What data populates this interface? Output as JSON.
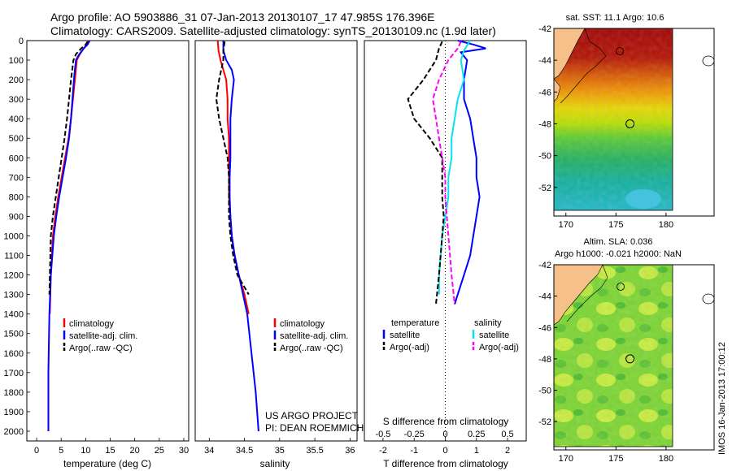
{
  "header": {
    "line1": "Argo profile: AO 5903886_31 07-Jan-2013 20130107_17 47.985S 176.396E",
    "line2": "Climatology: CARS2009. Satellite-adjusted climatology: synTS_20130109.nc (1.9d later)"
  },
  "colors": {
    "climatology": "#ff0000",
    "satellite": "#0000ff",
    "argo": "#000000",
    "sat_salinity": "#00e5ee",
    "argo_salinity": "#ff00ff",
    "land": "#f5c08a"
  },
  "footer": {
    "project": "US ARGO PROJECT",
    "pi": "PI: DEAN ROEMMICH",
    "imos_stamp": "IMOS 16-Jan-2013 17:00:12"
  },
  "chart_data": [
    {
      "type": "line",
      "id": "temperature_profile",
      "xlabel": "temperature (deg C)",
      "ylabel": "",
      "xlim": [
        -2,
        31
      ],
      "ylim": [
        2050,
        0
      ],
      "xticks": [
        0,
        5,
        10,
        15,
        20,
        25,
        30
      ],
      "yticks": [
        0,
        100,
        200,
        300,
        400,
        500,
        600,
        700,
        800,
        900,
        1000,
        1100,
        1200,
        1300,
        1400,
        1500,
        1600,
        1700,
        1800,
        1900,
        2000
      ],
      "legend": [
        "climatology",
        "satellite-adj. clim.",
        "Argo(..raw -QC)"
      ],
      "legend_position": "bottom-right",
      "series": [
        {
          "name": "climatology",
          "color": "#ff0000",
          "dash": "",
          "x": [
            10.6,
            10.2,
            9.6,
            8.8,
            8.2,
            7.8,
            7.4,
            7.0,
            6.5,
            5.8,
            5.1,
            4.4,
            3.8,
            3.3,
            2.9,
            2.7
          ],
          "y": [
            0,
            20,
            40,
            70,
            100,
            200,
            300,
            400,
            500,
            600,
            700,
            800,
            900,
            1000,
            1200,
            1400
          ]
        },
        {
          "name": "satellite-adj. clim.",
          "color": "#0000ff",
          "dash": "",
          "x": [
            10.8,
            10.4,
            9.6,
            8.7,
            8.0,
            7.6,
            7.3,
            7.0,
            6.6,
            6.0,
            5.3,
            4.6,
            4.0,
            3.5,
            2.9,
            2.6,
            2.4,
            2.4
          ],
          "y": [
            0,
            20,
            40,
            70,
            100,
            200,
            300,
            400,
            500,
            600,
            700,
            800,
            900,
            1000,
            1200,
            1400,
            1700,
            2000
          ]
        },
        {
          "name": "Argo(..raw -QC)",
          "color": "#000000",
          "dash": "6,3",
          "x": [
            10.4,
            10.0,
            9.1,
            8.0,
            7.5,
            7.0,
            6.6,
            6.2,
            5.7,
            5.1,
            4.5,
            3.9,
            3.3,
            2.9,
            2.7,
            2.6
          ],
          "y": [
            5,
            20,
            40,
            70,
            100,
            200,
            300,
            400,
            500,
            600,
            700,
            800,
            900,
            1000,
            1200,
            1300
          ]
        }
      ]
    },
    {
      "type": "line",
      "id": "salinity_profile",
      "xlabel": "salinity",
      "ylabel": "",
      "xlim": [
        33.8,
        36.1
      ],
      "ylim": [
        2050,
        0
      ],
      "xticks": [
        34,
        34.5,
        35,
        35.5,
        36
      ],
      "legend": [
        "climatology",
        "satellite-adj. clim.",
        "Argo(..raw -QC)"
      ],
      "legend_position": "bottom-right",
      "series": [
        {
          "name": "climatology",
          "color": "#ff0000",
          "dash": "",
          "x": [
            34.12,
            34.13,
            34.16,
            34.2,
            34.24,
            34.26,
            34.26,
            34.28,
            34.28,
            34.28,
            34.28,
            34.3,
            34.32,
            34.36,
            34.42,
            34.5,
            34.56
          ],
          "y": [
            0,
            50,
            100,
            150,
            200,
            300,
            400,
            500,
            600,
            700,
            800,
            900,
            1000,
            1100,
            1200,
            1300,
            1400
          ]
        },
        {
          "name": "satellite-adj. clim.",
          "color": "#0000ff",
          "dash": "",
          "x": [
            34.2,
            34.2,
            34.24,
            34.32,
            34.35,
            34.32,
            34.3,
            34.3,
            34.3,
            34.29,
            34.29,
            34.3,
            34.32,
            34.36,
            34.42,
            34.48,
            34.54,
            34.6,
            34.66,
            34.7
          ],
          "y": [
            0,
            50,
            100,
            150,
            200,
            300,
            400,
            500,
            600,
            700,
            800,
            900,
            1000,
            1100,
            1200,
            1300,
            1400,
            1600,
            1800,
            2000
          ]
        },
        {
          "name": "Argo(..raw -QC)",
          "color": "#000000",
          "dash": "6,3",
          "x": [
            34.22,
            34.2,
            34.2,
            34.14,
            34.1,
            34.14,
            34.2,
            34.26,
            34.28,
            34.28,
            34.28,
            34.3,
            34.34,
            34.4,
            34.48,
            34.56
          ],
          "y": [
            5,
            50,
            100,
            200,
            300,
            400,
            500,
            600,
            700,
            800,
            900,
            1000,
            1100,
            1200,
            1250,
            1300
          ]
        }
      ]
    },
    {
      "type": "line",
      "id": "difference_profile",
      "xlabel": "T difference from climatology",
      "xlabel_top": "S difference from climatology",
      "xlim": [
        -2.6,
        2.6
      ],
      "ylim": [
        2050,
        0
      ],
      "xticks_T": [
        -2,
        -1,
        0,
        1,
        2
      ],
      "xticks_S": [
        -0.5,
        -0.25,
        0,
        0.25,
        0.5
      ],
      "zero_line": "dotted",
      "legend_groups": [
        {
          "title": "temperature",
          "entries": [
            "satellite",
            "Argo(-adj)"
          ]
        },
        {
          "title": "salinity",
          "entries": [
            "satellite",
            "Argo(-adj)"
          ]
        }
      ],
      "series": [
        {
          "name": "satellite",
          "group": "temperature",
          "color": "#0000ff",
          "dash": "",
          "x": [
            0.4,
            0.9,
            1.3,
            0.5,
            0.7,
            0.6,
            0.6,
            0.8,
            0.9,
            1.0,
            1.0,
            1.1,
            1.0,
            0.9,
            0.8,
            0.6,
            0.4,
            0.3
          ],
          "y": [
            0,
            20,
            40,
            60,
            100,
            200,
            300,
            400,
            500,
            600,
            700,
            800,
            900,
            1000,
            1100,
            1200,
            1300,
            1350
          ]
        },
        {
          "name": "satellite",
          "group": "salinity",
          "color": "#00e5ee",
          "dash": "",
          "x": [
            0.8,
            0.6,
            0.5,
            0.6,
            0.4,
            0.3,
            0.2,
            0.2,
            0.1,
            0.1,
            0.0,
            -0.1,
            -0.2,
            -0.2
          ],
          "y": [
            0,
            50,
            100,
            200,
            300,
            400,
            500,
            600,
            700,
            800,
            900,
            1000,
            1200,
            1300
          ]
        },
        {
          "name": "Argo(-adj)",
          "group": "temperature",
          "color": "#000000",
          "dash": "6,3",
          "x": [
            -0.1,
            -0.2,
            -0.3,
            -0.7,
            -1.2,
            -1.0,
            -0.5,
            -0.1,
            -0.1,
            -0.1,
            -0.05,
            -0.1,
            -0.2,
            -0.3
          ],
          "y": [
            5,
            40,
            100,
            200,
            300,
            400,
            500,
            600,
            700,
            800,
            900,
            1000,
            1200,
            1350
          ]
        },
        {
          "name": "Argo(-adj)",
          "group": "salinity",
          "color": "#ff00ff",
          "dash": "6,3",
          "x": [
            0.5,
            0.4,
            0.1,
            -0.2,
            -0.4,
            -0.3,
            -0.2,
            -0.1,
            0.0,
            0.0,
            0.05,
            0.1,
            0.2,
            0.3
          ],
          "y": [
            5,
            40,
            100,
            200,
            300,
            400,
            500,
            600,
            700,
            800,
            900,
            1000,
            1200,
            1350
          ]
        }
      ]
    },
    {
      "type": "heatmap",
      "id": "sst_map",
      "title": "sat. SST: 11.1  Argo: 10.6",
      "xticks": [
        170,
        175,
        180
      ],
      "yticks": [
        -42,
        -44,
        -46,
        -48,
        -50,
        -52
      ],
      "xlim": [
        168.8,
        184.8
      ],
      "ylim": [
        -53.8,
        -42
      ],
      "float_location": [
        176.4,
        -48.0
      ]
    },
    {
      "type": "heatmap",
      "id": "sla_map",
      "title": "Altim. SLA: 0.036",
      "subtitle": "Argo h1000: -0.021  h2000: NaN",
      "xticks": [
        170,
        175,
        180
      ],
      "yticks": [
        -42,
        -44,
        -46,
        -48,
        -50,
        -52
      ],
      "xlim": [
        168.8,
        184.8
      ],
      "ylim": [
        -53.8,
        -42
      ],
      "float_location": [
        176.4,
        -48.0
      ]
    }
  ]
}
